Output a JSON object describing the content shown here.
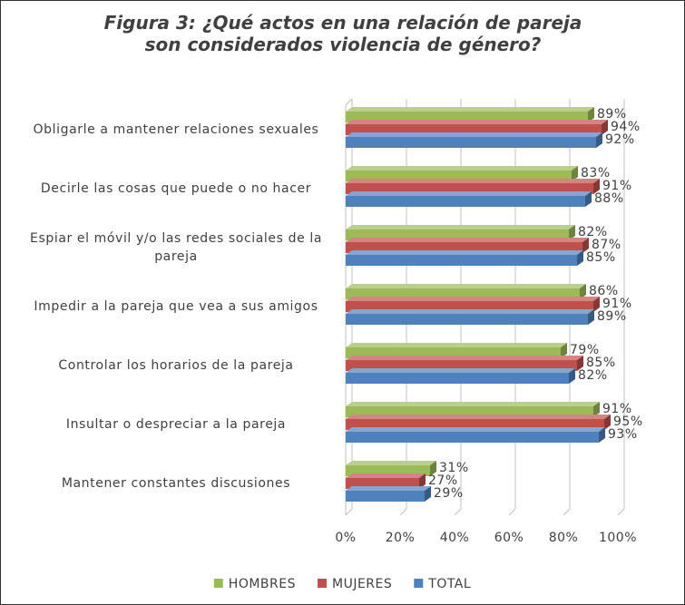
{
  "chart_data": {
    "type": "bar",
    "title": "Figura 3: ¿Qué actos en una relación de pareja son considerados violencia de género?",
    "categories": [
      "Obligarle a mantener relaciones sexuales",
      "Decirle las cosas que puede o no hacer",
      "Espiar el móvil y/o las redes sociales de la pareja",
      "Impedir a la pareja que vea a sus amigos",
      "Controlar los horarios de la pareja",
      "Insultar o despreciar a la pareja",
      "Mantener constantes discusiones"
    ],
    "series": [
      {
        "name": "HOMBRES",
        "color": "#9bbb59",
        "values": [
          89,
          83,
          82,
          86,
          79,
          91,
          31
        ],
        "value_labels": [
          "89%",
          "83%",
          "82%",
          "86%",
          "79%",
          "91%",
          "31%"
        ]
      },
      {
        "name": "MUJERES",
        "color": "#c0504d",
        "values": [
          94,
          91,
          87,
          91,
          85,
          95,
          27
        ],
        "value_labels": [
          "94%",
          "91%",
          "87%",
          "91%",
          "85%",
          "95%",
          "27%"
        ]
      },
      {
        "name": "TOTAL",
        "color": "#4f81bd",
        "values": [
          92,
          88,
          85,
          89,
          82,
          93,
          29
        ],
        "value_labels": [
          "92%",
          "88%",
          "85%",
          "89%",
          "82%",
          "93%",
          "29%"
        ]
      }
    ],
    "xlim": [
      0,
      100
    ],
    "xticks": [
      {
        "value": 0,
        "label": "0%"
      },
      {
        "value": 20,
        "label": "20%"
      },
      {
        "value": 40,
        "label": "40%"
      },
      {
        "value": 60,
        "label": "60%"
      },
      {
        "value": 80,
        "label": "80%"
      },
      {
        "value": 100,
        "label": "100%"
      }
    ],
    "grid": true,
    "legend": "bottom"
  }
}
